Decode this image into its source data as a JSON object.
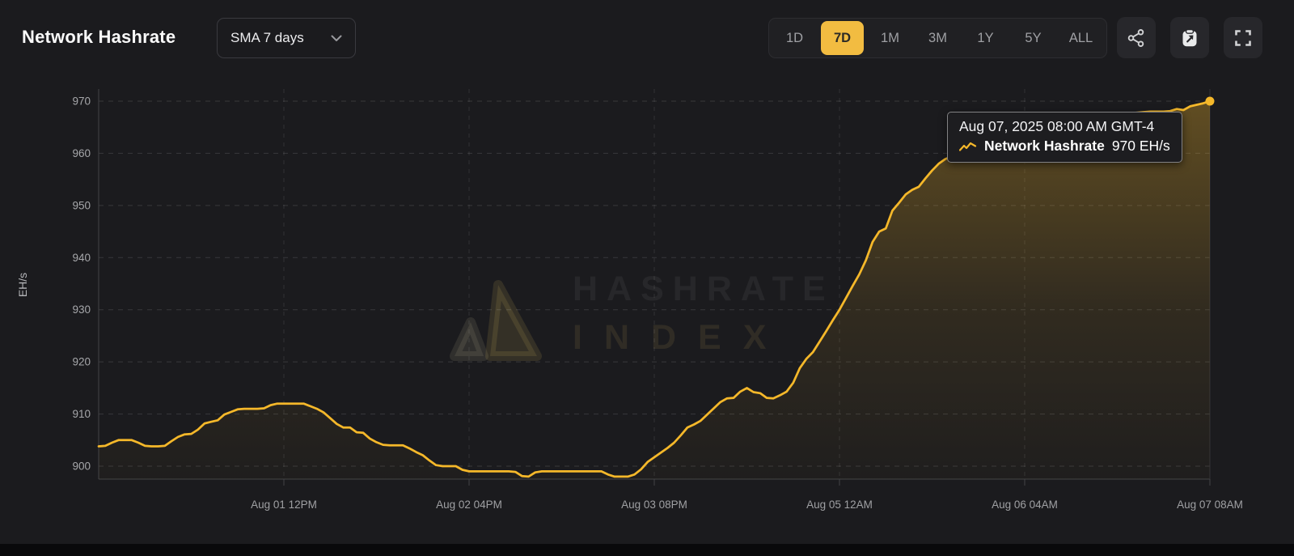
{
  "header": {
    "title": "Network Hashrate",
    "sma_dropdown_value": "SMA 7 days",
    "ranges": [
      {
        "label": "1D",
        "active": false
      },
      {
        "label": "7D",
        "active": true
      },
      {
        "label": "1M",
        "active": false
      },
      {
        "label": "3M",
        "active": false
      },
      {
        "label": "1Y",
        "active": false
      },
      {
        "label": "5Y",
        "active": false
      },
      {
        "label": "ALL",
        "active": false
      }
    ],
    "icon_buttons": [
      "share-icon",
      "clipboard-capture-icon",
      "fullscreen-icon"
    ],
    "active_range_color": "#f2bc41"
  },
  "watermark": {
    "line1": "HASHRATE",
    "line2": "INDEX"
  },
  "tooltip": {
    "date": "Aug 07, 2025 08:00 AM GMT-4",
    "series_name": "Network Hashrate",
    "value": "970 EH/s"
  },
  "chart_data": {
    "type": "line",
    "title": "Network Hashrate",
    "ylabel": "EH/s",
    "unit": "EH/s",
    "ylim": [
      897,
      972
    ],
    "grid": "dashed",
    "legend": "none",
    "y_ticks": [
      900,
      910,
      920,
      930,
      940,
      950,
      960,
      970
    ],
    "x_tick_labels": [
      "Aug 01 12PM",
      "Aug 02 04PM",
      "Aug 03 08PM",
      "Aug 05 12AM",
      "Aug 06 04AM",
      "Aug 07 08AM"
    ],
    "x_tick_positions": [
      0.16667,
      0.33333,
      0.5,
      0.66667,
      0.83333,
      1
    ],
    "series": [
      {
        "name": "Network Hashrate",
        "color": "#f5b82a",
        "unit": "EH/s",
        "values": [
          903.8,
          903.9,
          904.5,
          905,
          905,
          905,
          904.5,
          903.9,
          903.8,
          903.8,
          903.9,
          904.8,
          905.6,
          906.1,
          906.2,
          907,
          908.2,
          908.5,
          908.8,
          909.9,
          910.4,
          910.9,
          911,
          911,
          911,
          911.1,
          911.7,
          912,
          912,
          912,
          912,
          912,
          911.5,
          911,
          910.3,
          909.2,
          908.1,
          907.4,
          907.4,
          906.5,
          906.4,
          905.3,
          904.6,
          904.1,
          904,
          904,
          904,
          903.4,
          902.7,
          902.1,
          901.1,
          900.2,
          900,
          900,
          900,
          899.3,
          899,
          899,
          899,
          899,
          899,
          899,
          899,
          898.9,
          898.1,
          898,
          898.8,
          899,
          899,
          899,
          899,
          899,
          899,
          899,
          899,
          899,
          899,
          898.4,
          898,
          898,
          898,
          898.4,
          899.4,
          900.8,
          901.7,
          902.6,
          903.5,
          904.5,
          905.9,
          907.4,
          908,
          908.7,
          909.9,
          911.1,
          912.3,
          913,
          913.1,
          914.3,
          915,
          914.2,
          914,
          913.1,
          913,
          913.6,
          914.3,
          916,
          918.8,
          920.6,
          921.9,
          923.9,
          925.9,
          928,
          930,
          932.3,
          934.6,
          936.8,
          939.5,
          943,
          945,
          945.6,
          949,
          950.5,
          952.1,
          953,
          953.6,
          955.2,
          956.7,
          958,
          958.9,
          959.4,
          959.5,
          959.5,
          959.7,
          960,
          960.3,
          960.7,
          961.1,
          961.5,
          962,
          962.4,
          962.9,
          963.3,
          963.7,
          964.1,
          964.5,
          964.9,
          965.3,
          965.7,
          966,
          966.3,
          966.6,
          966.9,
          967.1,
          967.3,
          967.5,
          967.6,
          967.7,
          967.8,
          967.9,
          968,
          968,
          968,
          968.1,
          968.5,
          968.3,
          969,
          969.3,
          969.6,
          970
        ]
      }
    ],
    "last_point": {
      "time_label": "Aug 07, 2025 08:00 AM GMT-4",
      "value": 970
    }
  }
}
